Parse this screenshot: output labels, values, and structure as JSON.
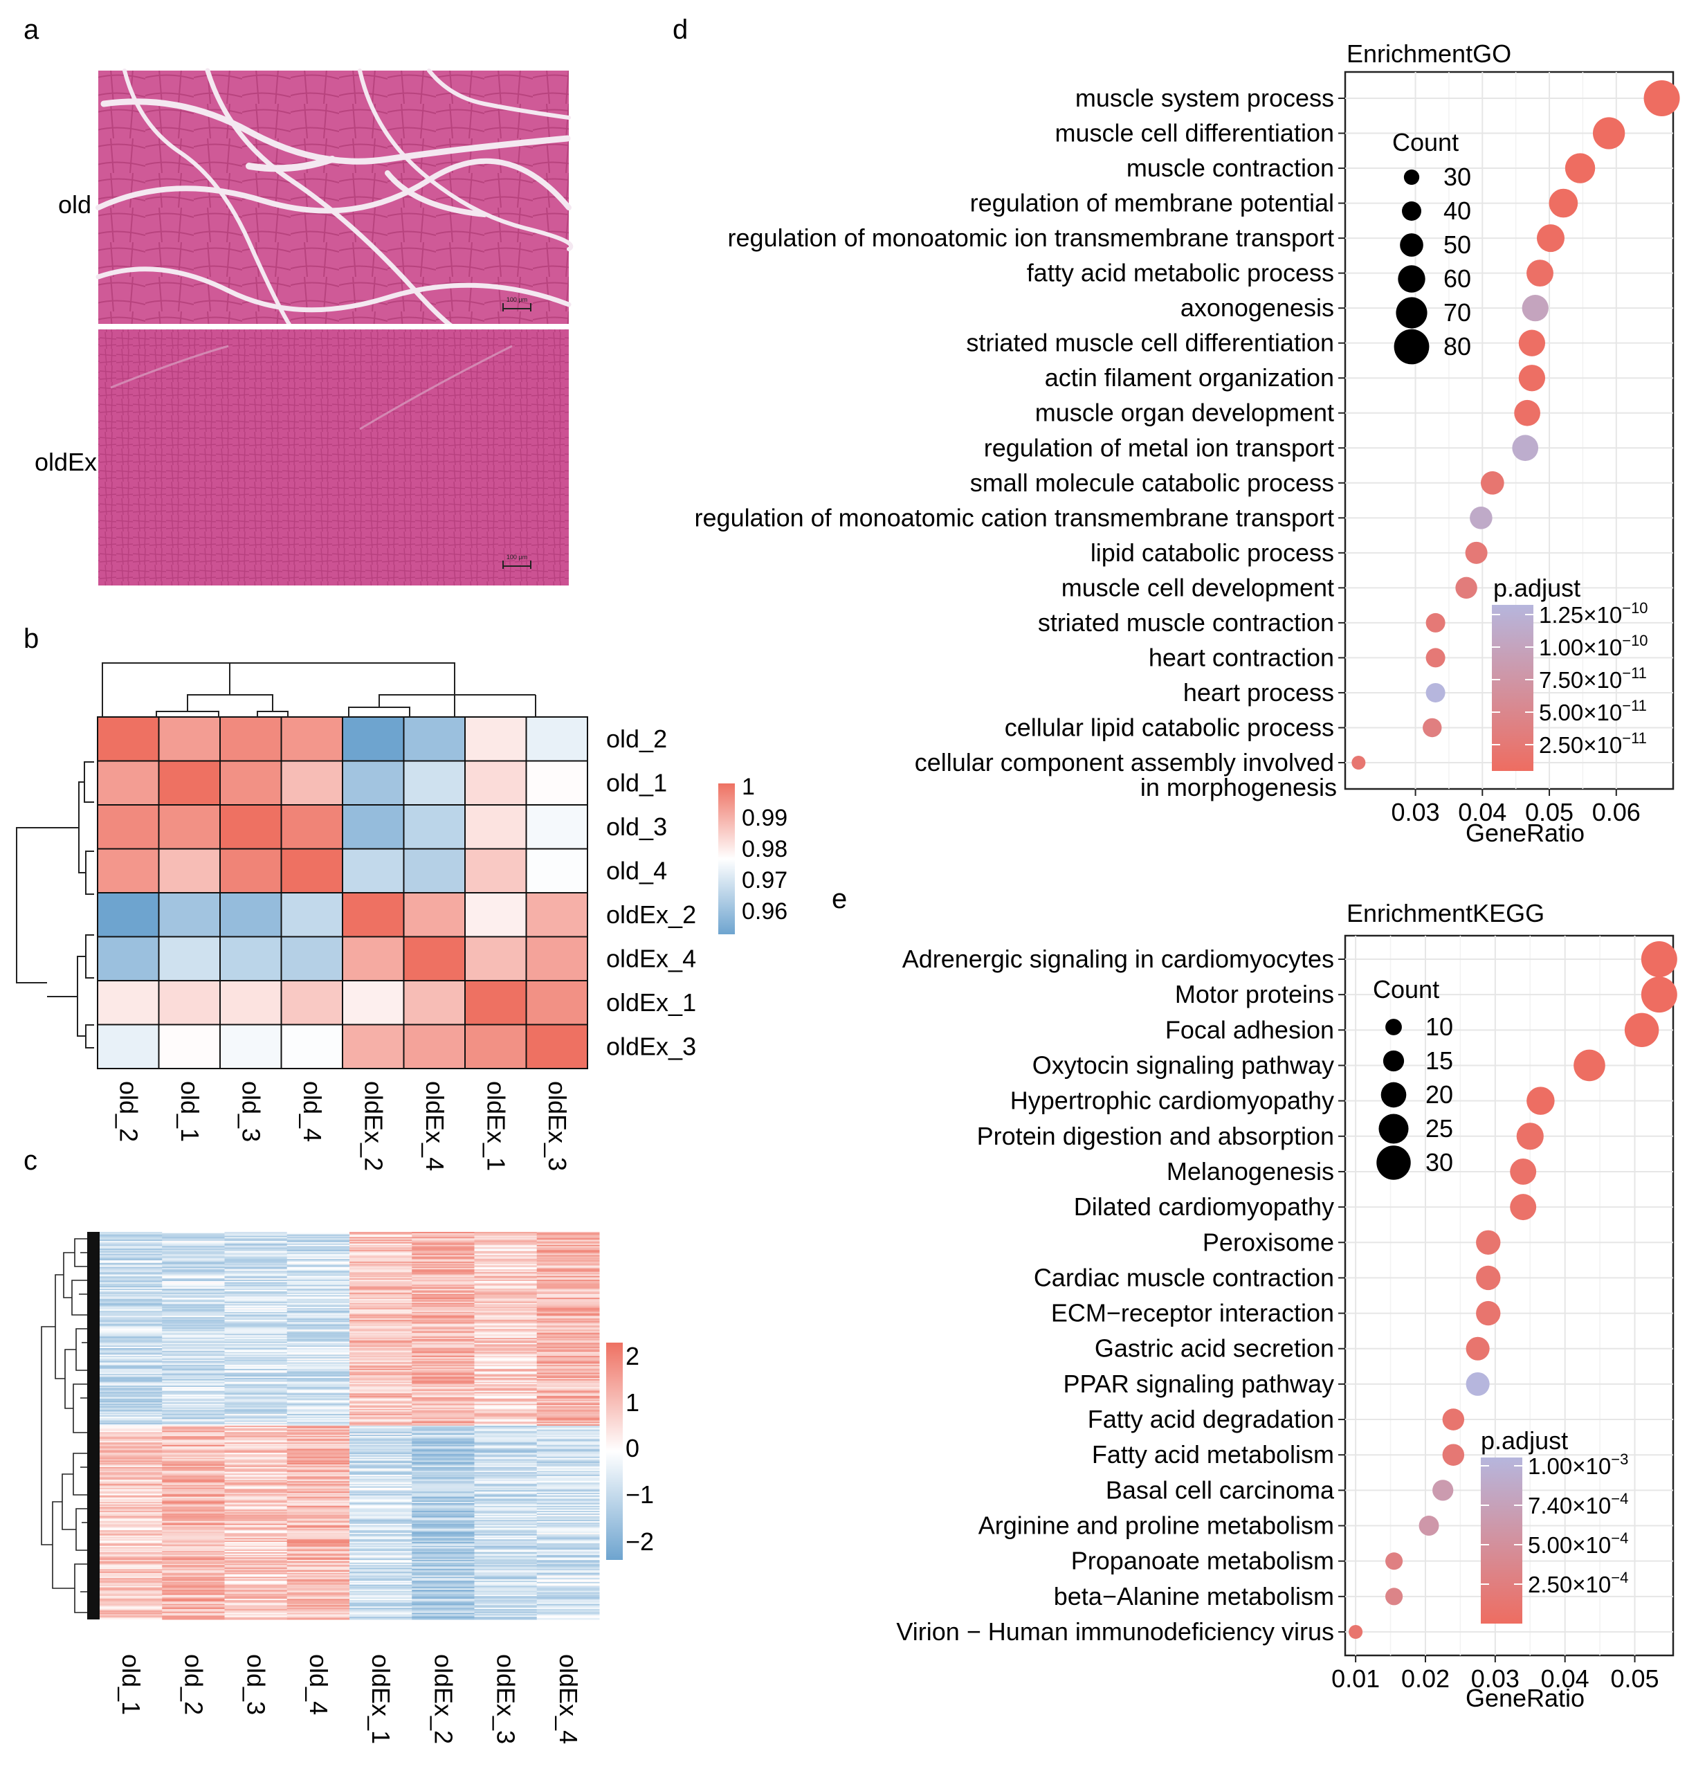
{
  "panel_letters": {
    "a": "a",
    "b": "b",
    "c": "c",
    "d": "d",
    "e": "e"
  },
  "panel_a": {
    "rows": [
      "old",
      "oldEx"
    ],
    "scalebar": "100 μm",
    "colors": {
      "tissue": "#c9508f",
      "gap": "#f2e6ef"
    }
  },
  "panel_b": {
    "type": "heatmap",
    "samples_cols": [
      "old_2",
      "old_1",
      "old_3",
      "old_4",
      "oldEx_2",
      "oldEx_4",
      "oldEx_1",
      "oldEx_3"
    ],
    "samples_rows": [
      "old_2",
      "old_1",
      "old_3",
      "old_4",
      "oldEx_2",
      "oldEx_4",
      "oldEx_1",
      "oldEx_3"
    ],
    "values": [
      [
        1.0,
        0.993,
        0.996,
        0.994,
        0.955,
        0.962,
        0.981,
        0.974
      ],
      [
        0.993,
        1.0,
        0.995,
        0.988,
        0.963,
        0.97,
        0.983,
        0.978
      ],
      [
        0.996,
        0.995,
        1.0,
        0.997,
        0.961,
        0.967,
        0.982,
        0.976
      ],
      [
        0.994,
        0.988,
        0.997,
        1.0,
        0.968,
        0.966,
        0.986,
        0.977
      ],
      [
        0.955,
        0.963,
        0.961,
        0.968,
        1.0,
        0.991,
        0.98,
        0.99
      ],
      [
        0.962,
        0.97,
        0.967,
        0.966,
        0.991,
        1.0,
        0.988,
        0.992
      ],
      [
        0.981,
        0.983,
        0.982,
        0.986,
        0.98,
        0.988,
        1.0,
        0.995
      ],
      [
        0.974,
        0.978,
        0.976,
        0.977,
        0.99,
        0.992,
        0.995,
        1.0
      ]
    ],
    "legend_ticks": [
      "1",
      "0.99",
      "0.98",
      "0.97",
      "0.96"
    ],
    "colors": {
      "high": "#ee7162",
      "mid": "#ffffff",
      "low": "#6ea4cf"
    }
  },
  "panel_c": {
    "type": "heatmap",
    "columns": [
      "old_1",
      "old_2",
      "old_3",
      "old_4",
      "oldEx_1",
      "oldEx_2",
      "oldEx_3",
      "oldEx_4"
    ],
    "legend_ticks": [
      "2",
      "1",
      "0",
      "−1",
      "−2"
    ],
    "n_genes": 300
  },
  "chart_data": [
    {
      "type": "scatter",
      "title": "EnrichmentGO",
      "xlabel": "GeneRatio",
      "xlim": [
        0.0195,
        0.0685
      ],
      "xticks": [
        "0.03",
        "0.04",
        "0.05",
        "0.06"
      ],
      "terms": [
        "muscle system process",
        "muscle cell differentiation",
        "muscle contraction",
        "regulation of membrane potential",
        "regulation of monoatomic ion transmembrane transport",
        "fatty acid metabolic process",
        "axonogenesis",
        "striated muscle cell differentiation",
        "actin filament organization",
        "muscle organ development",
        "regulation of metal ion transport",
        "small molecule catabolic process",
        "regulation of monoatomic cation transmembrane transport",
        "lipid catabolic process",
        "muscle cell development",
        "striated muscle contraction",
        "heart contraction",
        "heart process",
        "cellular lipid catabolic process",
        "cellular component assembly involved"
      ],
      "term_last_line2": "in morphogenesis",
      "gene_ratio": [
        0.0668,
        0.0589,
        0.0546,
        0.0521,
        0.0502,
        0.0486,
        0.0479,
        0.0474,
        0.0474,
        0.0467,
        0.0464,
        0.0415,
        0.0398,
        0.0391,
        0.0376,
        0.033,
        0.033,
        0.033,
        0.0325,
        0.0215
      ],
      "count": [
        82,
        72,
        67,
        64,
        61,
        59,
        58,
        58,
        58,
        57,
        57,
        50,
        48,
        47,
        46,
        40,
        40,
        40,
        39,
        26
      ],
      "p_adjust": [
        1e-14,
        1e-13,
        2e-13,
        1e-12,
        2e-12,
        5e-12,
        9e-11,
        3e-12,
        3e-12,
        5e-12,
        1.05e-10,
        1.5e-11,
        1e-10,
        2e-11,
        2.5e-11,
        2e-11,
        2e-11,
        1.2e-10,
        3e-11,
        1.5e-11
      ],
      "size_legend": {
        "title": "Count",
        "values": [
          "30",
          "40",
          "50",
          "60",
          "70",
          "80"
        ]
      },
      "color_legend": {
        "title": "p.adjust",
        "labels": [
          "1.25×10",
          "1.00×10",
          "7.50×10",
          "5.00×10",
          "2.50×10"
        ],
        "exponents": [
          "−10",
          "−10",
          "−11",
          "−11",
          "−11"
        ],
        "colors": {
          "high": "#b6b6dd",
          "low": "#ee6d61"
        }
      }
    },
    {
      "type": "scatter",
      "title": "EnrichmentKEGG",
      "xlabel": "GeneRatio",
      "xlim": [
        0.0085,
        0.0555
      ],
      "xticks": [
        "0.01",
        "0.02",
        "0.03",
        "0.04",
        "0.05"
      ],
      "terms": [
        "Adrenergic signaling in cardiomyocytes",
        "Motor proteins",
        "Focal adhesion",
        "Oxytocin signaling pathway",
        "Hypertrophic cardiomyopathy",
        "Protein digestion and absorption",
        "Melanogenesis",
        "Dilated cardiomyopathy",
        "Peroxisome",
        "Cardiac muscle contraction",
        "ECM−receptor interaction",
        "Gastric acid secretion",
        "PPAR signaling pathway",
        "Fatty acid degradation",
        "Fatty acid metabolism",
        "Basal cell carcinoma",
        "Arginine and proline metabolism",
        "Propanoate metabolism",
        "beta−Alanine metabolism",
        "Virion − Human immunodeficiency virus"
      ],
      "gene_ratio": [
        0.0535,
        0.0535,
        0.051,
        0.0435,
        0.0365,
        0.035,
        0.034,
        0.034,
        0.029,
        0.029,
        0.029,
        0.0275,
        0.0275,
        0.024,
        0.024,
        0.0225,
        0.0205,
        0.0155,
        0.0155,
        0.01
      ],
      "count": [
        32,
        32,
        30,
        27,
        23,
        22,
        21,
        21,
        19,
        19,
        19,
        18,
        18,
        16,
        16,
        15,
        14,
        11,
        11,
        7
      ],
      "p_adjust": [
        1e-06,
        1e-06,
        2e-06,
        1e-05,
        2e-05,
        5e-05,
        6e-05,
        6e-05,
        0.0001,
        0.0001,
        0.0001,
        0.0001,
        0.00095,
        0.0001,
        0.00015,
        0.0006,
        0.00055,
        0.00025,
        0.0003,
        0.0001
      ],
      "size_legend": {
        "title": "Count",
        "values": [
          "10",
          "15",
          "20",
          "25",
          "30"
        ]
      },
      "color_legend": {
        "title": "p.adjust",
        "labels": [
          "1.00×10",
          "7.40×10",
          "5.00×10",
          "2.50×10"
        ],
        "exponents": [
          "−3",
          "−4",
          "−4",
          "−4"
        ],
        "colors": {
          "high": "#b6b6dd",
          "low": "#ee6d61"
        }
      }
    }
  ]
}
